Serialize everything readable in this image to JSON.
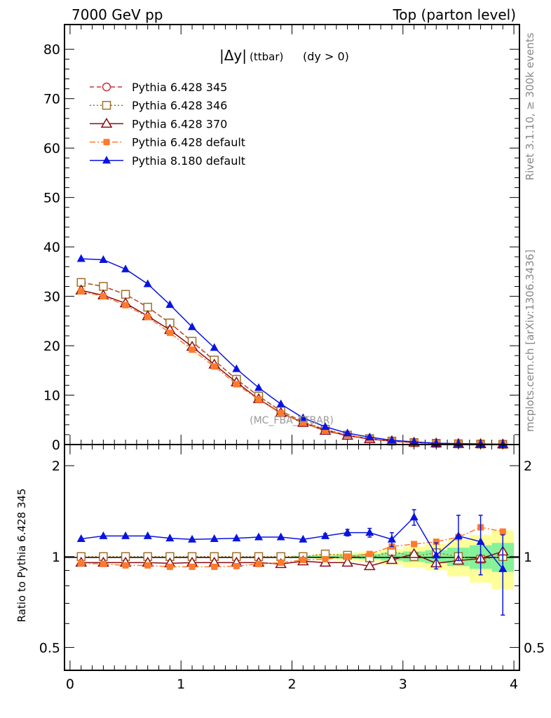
{
  "header": {
    "left": "7000 GeV pp",
    "right": "Top (parton level)"
  },
  "side_labels": {
    "rivet": "Rivet 3.1.10, ≥ 300k events",
    "mcplots": "mcplots.cern.ch [arXiv:1306.3436]"
  },
  "watermark": "(MC_FBA_TTBAR)",
  "plot_title": {
    "main": "|Δy|",
    "sub": "(ttbar)",
    "cond": "(dy > 0)"
  },
  "ratio_ylabel": "Ratio to Pythia 6.428 345",
  "chart_data": [
    {
      "type": "line",
      "x": [
        0.1,
        0.3,
        0.5,
        0.7,
        0.9,
        1.1,
        1.3,
        1.5,
        1.7,
        1.9,
        2.1,
        2.3,
        2.5,
        2.7,
        2.9,
        3.1,
        3.3,
        3.5,
        3.7,
        3.9
      ],
      "xlim": [
        -0.05,
        4.05
      ],
      "ylim": [
        0,
        85
      ],
      "yticks": [
        "0",
        "10",
        "20",
        "30",
        "40",
        "50",
        "60",
        "70",
        "80"
      ],
      "legend_position": "top-left",
      "series": [
        {
          "name": "Pythia 6.428 345",
          "color": "#c8303a",
          "marker": "open-circle",
          "dash": "dashed",
          "values": [
            32.8,
            32.0,
            30.4,
            27.8,
            24.6,
            20.8,
            17.0,
            13.2,
            9.8,
            6.8,
            4.6,
            3.0,
            1.9,
            1.2,
            0.7,
            0.4,
            0.25,
            0.15,
            0.1,
            0.05
          ]
        },
        {
          "name": "Pythia 6.428 346",
          "color": "#a0702a",
          "marker": "open-square",
          "dash": "dotted",
          "values": [
            32.8,
            32.0,
            30.4,
            27.8,
            24.6,
            20.9,
            17.1,
            13.2,
            9.8,
            6.8,
            4.6,
            3.1,
            1.9,
            1.2,
            0.7,
            0.4,
            0.25,
            0.15,
            0.1,
            0.05
          ]
        },
        {
          "name": "Pythia 6.428 370",
          "color": "#8b0a14",
          "marker": "open-triangle",
          "dash": "solid",
          "values": [
            31.2,
            30.2,
            28.6,
            26.0,
            23.2,
            19.8,
            16.2,
            12.6,
            9.2,
            6.4,
            4.4,
            2.8,
            1.8,
            1.1,
            0.7,
            0.4,
            0.24,
            0.14,
            0.1,
            0.05
          ]
        },
        {
          "name": "Pythia 6.428 default",
          "color": "#ff7a2a",
          "marker": "filled-square",
          "dash": "dashdot",
          "values": [
            31.0,
            30.0,
            28.2,
            25.8,
            22.6,
            19.2,
            15.8,
            12.2,
            9.1,
            6.3,
            4.4,
            2.9,
            1.9,
            1.2,
            0.75,
            0.44,
            0.28,
            0.17,
            0.13,
            0.06
          ]
        },
        {
          "name": "Pythia 8.180 default",
          "color": "#0a14e0",
          "marker": "filled-triangle",
          "dash": "solid",
          "values": [
            37.6,
            37.4,
            35.5,
            32.5,
            28.3,
            23.8,
            19.6,
            15.3,
            11.5,
            8.2,
            5.4,
            3.6,
            2.3,
            1.5,
            0.85,
            0.55,
            0.26,
            0.18,
            0.12,
            0.05
          ]
        }
      ]
    },
    {
      "type": "line",
      "x": [
        0.1,
        0.3,
        0.5,
        0.7,
        0.9,
        1.1,
        1.3,
        1.5,
        1.7,
        1.9,
        2.1,
        2.3,
        2.5,
        2.7,
        2.9,
        3.1,
        3.3,
        3.5,
        3.7,
        3.9
      ],
      "xlim": [
        -0.05,
        4.05
      ],
      "xticks": [
        "0",
        "1",
        "2",
        "3",
        "4"
      ],
      "ylim": [
        0.42,
        2.35
      ],
      "ylog": true,
      "yticks": [
        "0.5",
        "1",
        "2"
      ],
      "ylabel": "Ratio to Pythia 6.428 345",
      "series": [
        {
          "name": "Pythia 6.428 346",
          "values": [
            1.0,
            1.0,
            1.0,
            1.0,
            1.0,
            1.0,
            1.0,
            1.0,
            1.0,
            1.0,
            1.0,
            1.02,
            1.01,
            0.99,
            1.04,
            1.0,
            1.03,
            1.0,
            0.98,
            1.0
          ]
        },
        {
          "name": "Pythia 6.428 370",
          "values": [
            0.955,
            0.955,
            0.955,
            0.955,
            0.95,
            0.955,
            0.955,
            0.955,
            0.955,
            0.945,
            0.965,
            0.955,
            0.955,
            0.93,
            0.975,
            1.02,
            0.95,
            0.97,
            0.985,
            1.04
          ]
        },
        {
          "name": "Pythia 6.428 default",
          "values": [
            0.95,
            0.945,
            0.935,
            0.935,
            0.925,
            0.925,
            0.925,
            0.93,
            0.945,
            0.955,
            0.975,
            0.98,
            1.0,
            1.02,
            1.08,
            1.1,
            1.12,
            1.16,
            1.25,
            1.21
          ]
        },
        {
          "name": "Pythia 8.180 default",
          "values": [
            1.145,
            1.17,
            1.17,
            1.17,
            1.15,
            1.14,
            1.145,
            1.15,
            1.16,
            1.16,
            1.14,
            1.17,
            1.2,
            1.2,
            1.14,
            1.35,
            1.01,
            1.17,
            1.12,
            0.91
          ],
          "errors": [
            0,
            0,
            0,
            0,
            0,
            0,
            0,
            0,
            0,
            0,
            0,
            0.02,
            0.03,
            0.04,
            0.06,
            0.08,
            0.1,
            0.2,
            0.25,
            0.27
          ]
        }
      ],
      "band_halfwidth": [
        0,
        0,
        0,
        0,
        0,
        0,
        0,
        0,
        0,
        0,
        0.005,
        0.01,
        0.015,
        0.02,
        0.03,
        0.04,
        0.05,
        0.07,
        0.09,
        0.11
      ]
    }
  ]
}
